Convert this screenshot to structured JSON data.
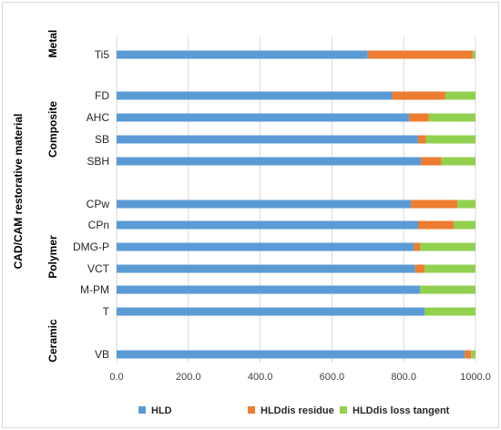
{
  "chart_data": {
    "type": "bar",
    "orientation": "horizontal",
    "stacked": true,
    "ylabel": "CAD/CAM restorative material",
    "xlabel": "",
    "xlim": [
      0,
      1000
    ],
    "x_ticks": [
      "0.0",
      "200.0",
      "400.0",
      "600.0",
      "800.0",
      "1000.0"
    ],
    "grid": "vertical",
    "legend_position": "bottom",
    "categories": [
      "Ti5",
      "FD",
      "AHC",
      "SB",
      "SBH",
      "CPw",
      "CPn",
      "DMG-P",
      "VCT",
      "M-PM",
      "T",
      "VB"
    ],
    "groups": [
      {
        "name": "Metal",
        "categories": [
          "Ti5"
        ]
      },
      {
        "name": "Composite",
        "categories": [
          "FD",
          "AHC",
          "SB",
          "SBH"
        ]
      },
      {
        "name": "Polymer",
        "categories": [
          "CPw",
          "CPn",
          "DMG-P",
          "VCT",
          "M-PM",
          "T"
        ]
      },
      {
        "name": "Ceramic",
        "categories": [
          "VB"
        ]
      }
    ],
    "series": [
      {
        "name": "HLD",
        "color": "#5b9bd5",
        "values": [
          700,
          768,
          815,
          840,
          848,
          820,
          840,
          828,
          832,
          845,
          858,
          970
        ]
      },
      {
        "name": "HLDdis residue",
        "color": "#ed7d31",
        "values": [
          292,
          148,
          55,
          22,
          57,
          130,
          100,
          18,
          26,
          0,
          0,
          18
        ]
      },
      {
        "name": "HLDdis loss tangent",
        "color": "#92d050",
        "values": [
          8,
          84,
          130,
          138,
          95,
          50,
          60,
          154,
          142,
          155,
          142,
          12
        ]
      }
    ]
  }
}
